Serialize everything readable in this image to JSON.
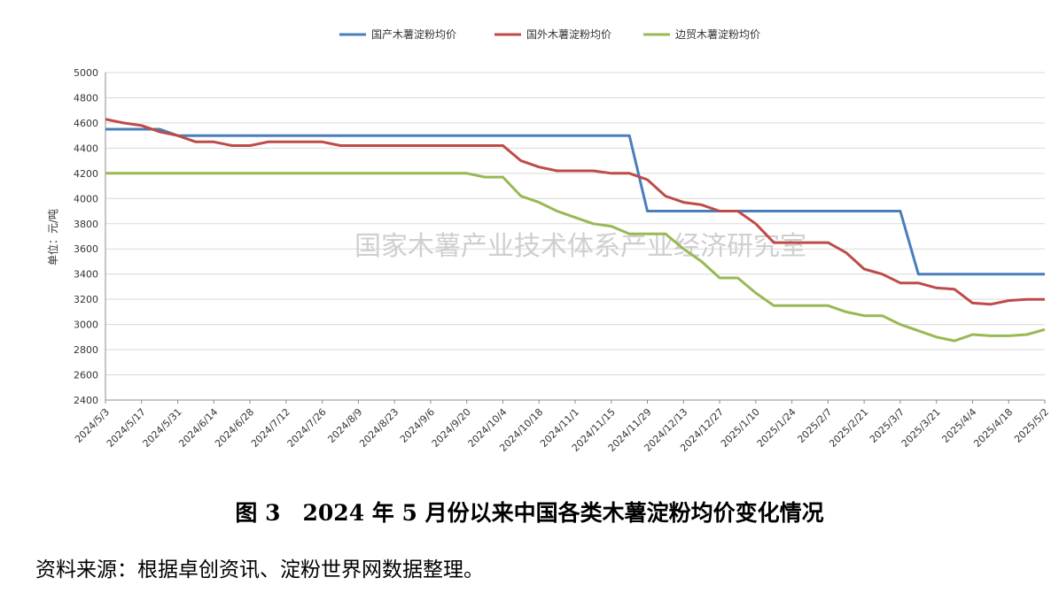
{
  "figure": {
    "title": "图 3　2024 年 5 月份以来中国各类木薯淀粉均价变化情况",
    "source": "资料来源：根据卓创资讯、淀粉世界网数据整理。",
    "watermark": "国家木薯产业技术体系产业经济研究室"
  },
  "chart_data": {
    "type": "line",
    "ylabel": "单位：元/吨",
    "ylim": [
      2400,
      5000
    ],
    "yticks": [
      2400,
      2600,
      2800,
      3000,
      3200,
      3400,
      3600,
      3800,
      4000,
      4200,
      4400,
      4600,
      4800,
      5000
    ],
    "grid": true,
    "legend_position": "top-center",
    "x_tick_labels": [
      "2024/5/3",
      "2024/5/17",
      "2024/5/31",
      "2024/6/14",
      "2024/6/28",
      "2024/7/12",
      "2024/7/26",
      "2024/8/9",
      "2024/8/23",
      "2024/9/6",
      "2024/9/20",
      "2024/10/4",
      "2024/10/18",
      "2024/11/1",
      "2024/11/15",
      "2024/11/29",
      "2024/12/13",
      "2024/12/27",
      "2025/1/10",
      "2025/1/24",
      "2025/2/7",
      "2025/2/21",
      "2025/3/7",
      "2025/3/21",
      "2025/4/4",
      "2025/4/18",
      "2025/5/2"
    ],
    "x": [
      "2024/5/3",
      "2024/5/10",
      "2024/5/17",
      "2024/5/24",
      "2024/5/31",
      "2024/6/7",
      "2024/6/14",
      "2024/6/21",
      "2024/6/28",
      "2024/7/5",
      "2024/7/12",
      "2024/7/19",
      "2024/7/26",
      "2024/8/2",
      "2024/8/9",
      "2024/8/16",
      "2024/8/23",
      "2024/8/30",
      "2024/9/6",
      "2024/9/13",
      "2024/9/20",
      "2024/9/27",
      "2024/10/4",
      "2024/10/11",
      "2024/10/18",
      "2024/10/25",
      "2024/11/1",
      "2024/11/8",
      "2024/11/15",
      "2024/11/22",
      "2024/11/29",
      "2024/12/6",
      "2024/12/13",
      "2024/12/20",
      "2024/12/27",
      "2025/1/3",
      "2025/1/10",
      "2025/1/17",
      "2025/1/24",
      "2025/1/31",
      "2025/2/7",
      "2025/2/14",
      "2025/2/21",
      "2025/2/28",
      "2025/3/7",
      "2025/3/14",
      "2025/3/21",
      "2025/3/28",
      "2025/4/4",
      "2025/4/11",
      "2025/4/18",
      "2025/4/25",
      "2025/5/2"
    ],
    "series": [
      {
        "name": "国产木薯淀粉均价",
        "color": "#4a7ebb",
        "values": [
          4550,
          4550,
          4550,
          4550,
          4500,
          4500,
          4500,
          4500,
          4500,
          4500,
          4500,
          4500,
          4500,
          4500,
          4500,
          4500,
          4500,
          4500,
          4500,
          4500,
          4500,
          4500,
          4500,
          4500,
          4500,
          4500,
          4500,
          4500,
          4500,
          4500,
          3900,
          3900,
          3900,
          3900,
          3900,
          3900,
          3900,
          3900,
          3900,
          3900,
          3900,
          3900,
          3900,
          3900,
          3900,
          3400,
          3400,
          3400,
          3400,
          3400,
          3400,
          3400,
          3400
        ]
      },
      {
        "name": "国外木薯淀粉均价",
        "color": "#be4b48",
        "values": [
          4630,
          4600,
          4580,
          4530,
          4500,
          4450,
          4450,
          4420,
          4420,
          4450,
          4450,
          4450,
          4450,
          4420,
          4420,
          4420,
          4420,
          4420,
          4420,
          4420,
          4420,
          4420,
          4420,
          4300,
          4250,
          4220,
          4220,
          4220,
          4200,
          4200,
          4150,
          4020,
          3970,
          3950,
          3900,
          3900,
          3800,
          3650,
          3650,
          3650,
          3650,
          3570,
          3440,
          3400,
          3330,
          3330,
          3290,
          3280,
          3170,
          3160,
          3190,
          3200,
          3200
        ]
      },
      {
        "name": "边贸木薯淀粉均价",
        "color": "#98b954",
        "values": [
          4200,
          4200,
          4200,
          4200,
          4200,
          4200,
          4200,
          4200,
          4200,
          4200,
          4200,
          4200,
          4200,
          4200,
          4200,
          4200,
          4200,
          4200,
          4200,
          4200,
          4200,
          4170,
          4170,
          4020,
          3970,
          3900,
          3850,
          3800,
          3780,
          3720,
          3720,
          3720,
          3600,
          3500,
          3370,
          3370,
          3250,
          3150,
          3150,
          3150,
          3150,
          3100,
          3070,
          3070,
          3000,
          2950,
          2900,
          2870,
          2920,
          2910,
          2910,
          2920,
          2960
        ]
      }
    ]
  }
}
